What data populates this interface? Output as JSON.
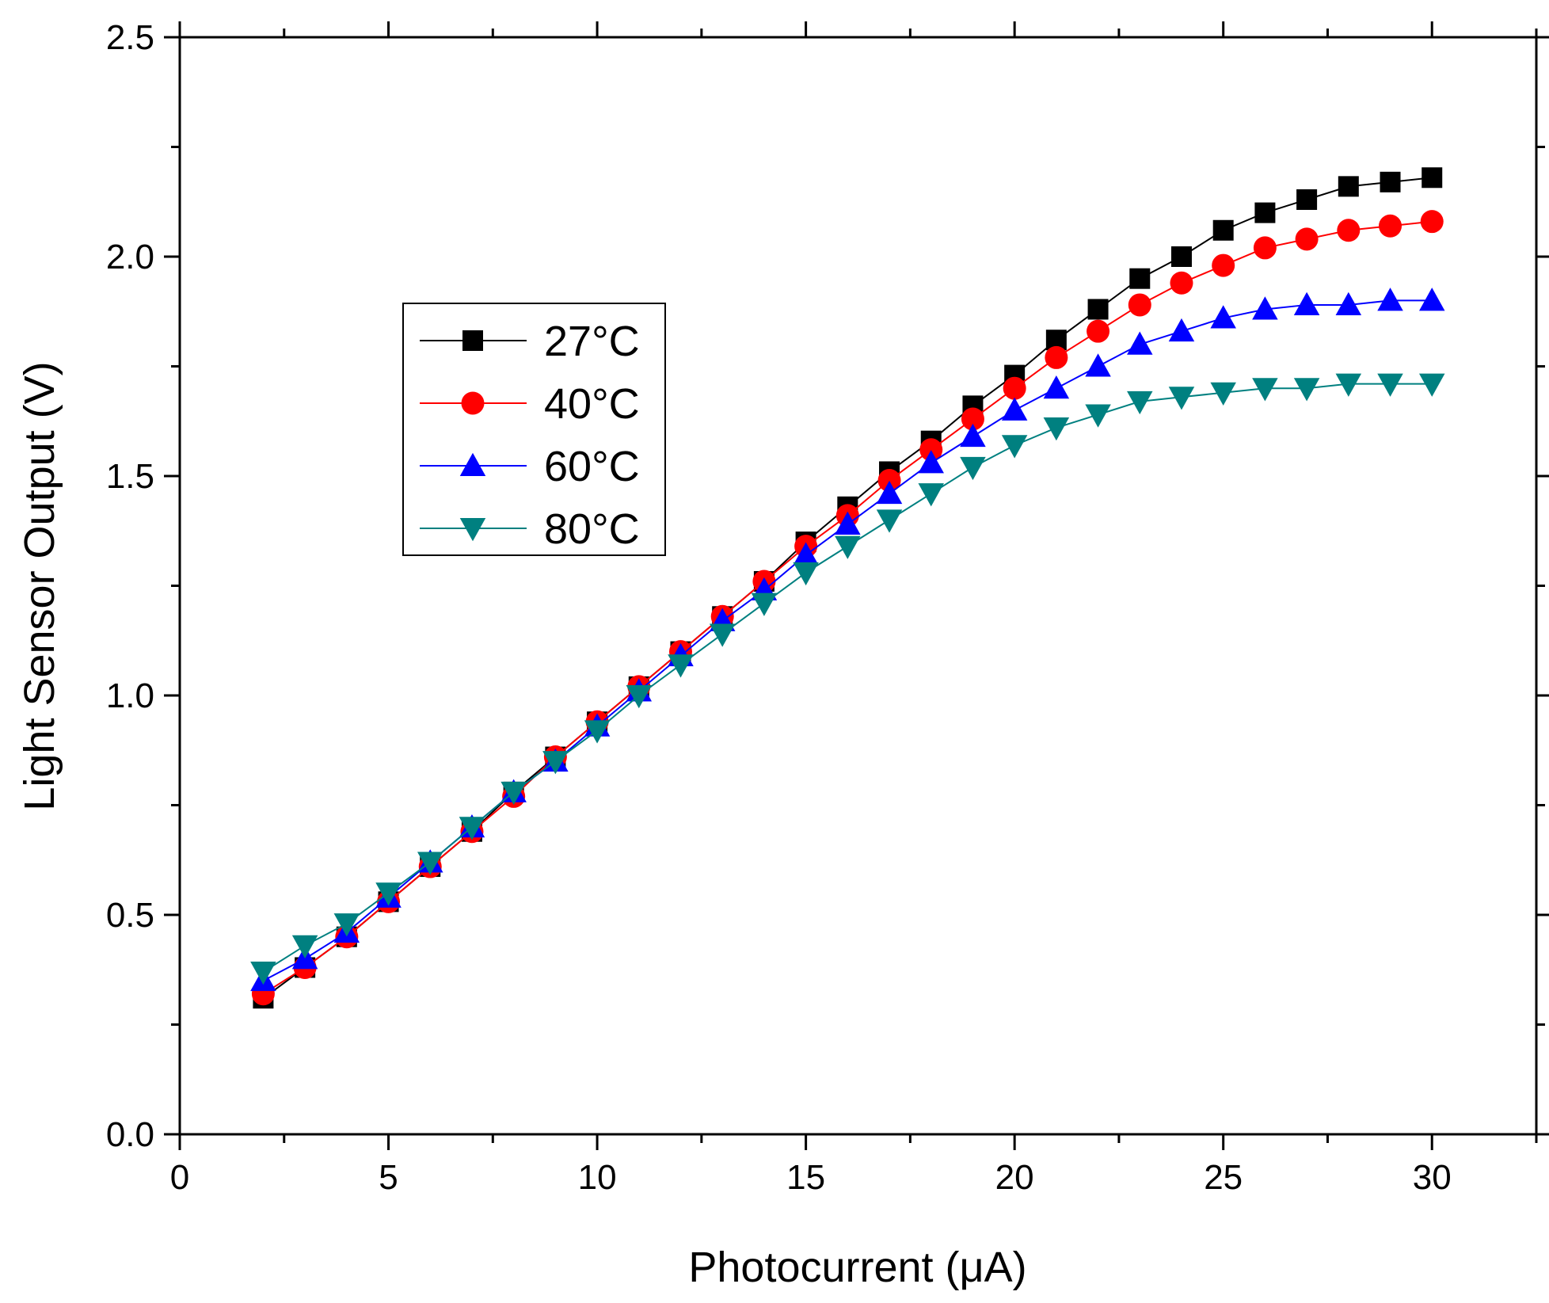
{
  "chart_data": {
    "type": "line",
    "title": "",
    "xlabel": "Photocurrent (μA)",
    "ylabel": "Light Sensor Output (V)",
    "xlim": [
      0,
      32.5
    ],
    "ylim": [
      0,
      2.5
    ],
    "xticks": [
      0,
      5,
      10,
      15,
      20,
      25,
      30
    ],
    "xtick_labels": [
      "0",
      "5",
      "10",
      "15",
      "20",
      "25",
      "30"
    ],
    "yticks": [
      0.0,
      0.5,
      1.0,
      1.5,
      2.0,
      2.5
    ],
    "ytick_labels": [
      "0.0",
      "0.5",
      "1.0",
      "1.5",
      "2.0",
      "2.5"
    ],
    "grid": false,
    "legend_position": "center-left",
    "x": [
      2,
      3,
      4,
      5,
      6,
      7,
      8,
      9,
      10,
      11,
      12,
      13,
      14,
      15,
      16,
      17,
      18,
      19,
      20,
      21,
      22,
      23,
      24,
      25,
      26,
      27,
      28,
      29,
      30
    ],
    "series": [
      {
        "name": "27°C",
        "color": "#000000",
        "marker": "square",
        "values": [
          0.31,
          0.38,
          0.45,
          0.53,
          0.61,
          0.69,
          0.78,
          0.86,
          0.94,
          1.02,
          1.1,
          1.18,
          1.26,
          1.35,
          1.43,
          1.51,
          1.58,
          1.66,
          1.73,
          1.81,
          1.88,
          1.95,
          2.0,
          2.06,
          2.1,
          2.13,
          2.16,
          2.17,
          2.18
        ]
      },
      {
        "name": "40°C",
        "color": "#ff0000",
        "marker": "circle",
        "values": [
          0.32,
          0.38,
          0.45,
          0.53,
          0.61,
          0.69,
          0.77,
          0.86,
          0.94,
          1.02,
          1.1,
          1.18,
          1.26,
          1.34,
          1.41,
          1.49,
          1.56,
          1.63,
          1.7,
          1.77,
          1.83,
          1.89,
          1.94,
          1.98,
          2.02,
          2.04,
          2.06,
          2.07,
          2.08
        ]
      },
      {
        "name": "60°C",
        "color": "#0000ff",
        "marker": "triangle-up",
        "values": [
          0.35,
          0.4,
          0.46,
          0.54,
          0.62,
          0.7,
          0.78,
          0.85,
          0.93,
          1.01,
          1.09,
          1.17,
          1.24,
          1.32,
          1.39,
          1.46,
          1.53,
          1.59,
          1.65,
          1.7,
          1.75,
          1.8,
          1.83,
          1.86,
          1.88,
          1.89,
          1.89,
          1.9,
          1.9
        ]
      },
      {
        "name": "80°C",
        "color": "#008080",
        "marker": "triangle-down",
        "values": [
          0.37,
          0.43,
          0.48,
          0.55,
          0.62,
          0.7,
          0.78,
          0.85,
          0.92,
          1.0,
          1.07,
          1.14,
          1.21,
          1.28,
          1.34,
          1.4,
          1.46,
          1.52,
          1.57,
          1.61,
          1.64,
          1.67,
          1.68,
          1.69,
          1.7,
          1.7,
          1.71,
          1.71,
          1.71
        ]
      }
    ]
  }
}
